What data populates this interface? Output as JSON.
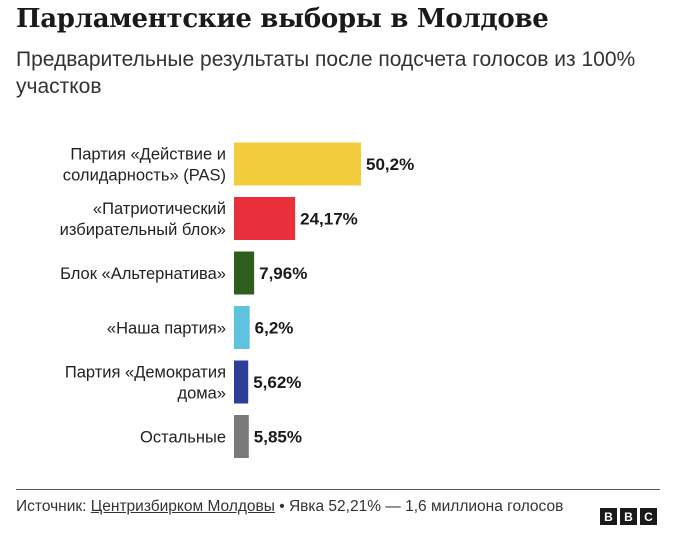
{
  "title": "Парламентские выборы в Молдове",
  "subtitle": "Предварительные результаты после подсчета голосов из 100% участков",
  "chart_data": {
    "type": "bar",
    "orientation": "horizontal",
    "categories": [
      [
        "Партия «Действие и",
        "солидарность» (PAS)"
      ],
      [
        "«Патриотический",
        "избирательный блок»"
      ],
      [
        "Блок «Альтернатива»"
      ],
      [
        "«Наша партия»"
      ],
      [
        "Партия «Демократия",
        "дома»"
      ],
      [
        "Остальные"
      ]
    ],
    "values": [
      50.2,
      24.17,
      7.96,
      6.2,
      5.62,
      5.85
    ],
    "value_labels": [
      "50,2%",
      "24,17%",
      "7,96%",
      "6,2%",
      "5,62%",
      "5,85%"
    ],
    "colors": [
      "#F3CC3D",
      "#E8303D",
      "#2E5E1E",
      "#5FC3E0",
      "#2C3E96",
      "#7A7A7A"
    ],
    "grid": false,
    "legend": "none"
  },
  "footer": {
    "source_prefix": "Источник: ",
    "source_link": "Центризбирком Молдовы",
    "source_rest": " • Явка 52,21% — 1,6 миллиона голосов"
  },
  "logo": [
    "B",
    "B",
    "C"
  ]
}
